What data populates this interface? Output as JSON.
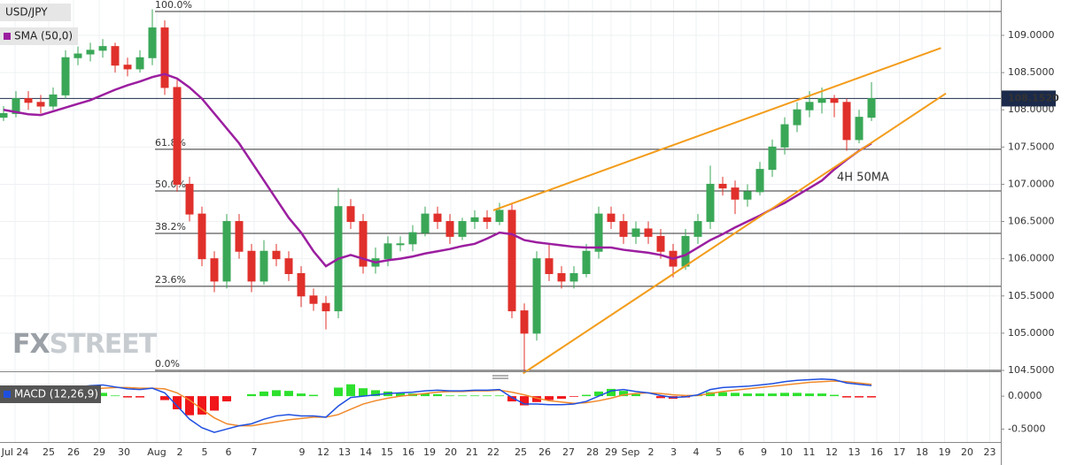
{
  "chart_data": {
    "type": "candlestick",
    "symbol": "USD/JPY",
    "candle_colors": {
      "up": "#3aa757",
      "down": "#e0302b"
    },
    "candles": [
      [
        107.9,
        108.05,
        107.85,
        107.95
      ],
      [
        107.95,
        108.25,
        107.9,
        108.15
      ],
      [
        108.15,
        108.25,
        108.0,
        108.1
      ],
      [
        108.1,
        108.2,
        107.95,
        108.05
      ],
      [
        108.05,
        108.3,
        108.0,
        108.2
      ],
      [
        108.2,
        108.8,
        108.15,
        108.7
      ],
      [
        108.7,
        108.85,
        108.6,
        108.75
      ],
      [
        108.75,
        108.9,
        108.65,
        108.8
      ],
      [
        108.8,
        108.95,
        108.7,
        108.85
      ],
      [
        108.85,
        108.9,
        108.5,
        108.6
      ],
      [
        108.6,
        108.7,
        108.45,
        108.55
      ],
      [
        108.55,
        108.8,
        108.5,
        108.7
      ],
      [
        108.7,
        109.35,
        108.6,
        109.1
      ],
      [
        109.1,
        109.2,
        108.2,
        108.3
      ],
      [
        108.3,
        108.4,
        106.9,
        107.0
      ],
      [
        107.0,
        107.1,
        106.5,
        106.6
      ],
      [
        106.6,
        106.7,
        105.9,
        106.0
      ],
      [
        106.0,
        106.1,
        105.55,
        105.7
      ],
      [
        105.7,
        106.6,
        105.6,
        106.5
      ],
      [
        106.5,
        106.6,
        106.0,
        106.1
      ],
      [
        106.1,
        106.2,
        105.55,
        105.7
      ],
      [
        105.7,
        106.25,
        105.65,
        106.1
      ],
      [
        106.1,
        106.2,
        105.9,
        106.0
      ],
      [
        106.0,
        106.1,
        105.7,
        105.8
      ],
      [
        105.8,
        105.9,
        105.35,
        105.5
      ],
      [
        105.5,
        105.6,
        105.3,
        105.4
      ],
      [
        105.4,
        105.5,
        105.05,
        105.3
      ],
      [
        105.3,
        106.95,
        105.2,
        106.7
      ],
      [
        106.7,
        106.8,
        106.4,
        106.5
      ],
      [
        106.5,
        106.6,
        105.8,
        105.9
      ],
      [
        105.9,
        106.15,
        105.8,
        106.0
      ],
      [
        106.0,
        106.3,
        105.9,
        106.2
      ],
      [
        106.2,
        106.3,
        106.1,
        106.2
      ],
      [
        106.2,
        106.45,
        106.1,
        106.35
      ],
      [
        106.35,
        106.7,
        106.3,
        106.6
      ],
      [
        106.6,
        106.7,
        106.4,
        106.5
      ],
      [
        106.5,
        106.6,
        106.2,
        106.3
      ],
      [
        106.3,
        106.55,
        106.25,
        106.5
      ],
      [
        106.5,
        106.65,
        106.4,
        106.55
      ],
      [
        106.55,
        106.65,
        106.4,
        106.5
      ],
      [
        106.5,
        106.75,
        106.45,
        106.65
      ],
      [
        106.65,
        106.75,
        105.2,
        105.3
      ],
      [
        105.3,
        105.4,
        104.46,
        105.0
      ],
      [
        105.0,
        106.1,
        104.9,
        106.0
      ],
      [
        106.0,
        106.2,
        105.7,
        105.8
      ],
      [
        105.8,
        105.9,
        105.6,
        105.7
      ],
      [
        105.7,
        105.9,
        105.6,
        105.8
      ],
      [
        105.8,
        106.2,
        105.75,
        106.1
      ],
      [
        106.1,
        106.7,
        106.0,
        106.6
      ],
      [
        106.6,
        106.7,
        106.4,
        106.5
      ],
      [
        106.5,
        106.6,
        106.2,
        106.3
      ],
      [
        106.3,
        106.5,
        106.2,
        106.4
      ],
      [
        106.4,
        106.5,
        106.2,
        106.3
      ],
      [
        106.3,
        106.4,
        106.0,
        106.1
      ],
      [
        106.1,
        106.2,
        105.75,
        105.9
      ],
      [
        105.9,
        106.4,
        105.85,
        106.3
      ],
      [
        106.3,
        106.6,
        106.2,
        106.5
      ],
      [
        106.5,
        107.25,
        106.4,
        107.0
      ],
      [
        107.0,
        107.1,
        106.85,
        106.95
      ],
      [
        106.95,
        107.05,
        106.6,
        106.8
      ],
      [
        106.8,
        107.0,
        106.7,
        106.9
      ],
      [
        106.9,
        107.3,
        106.85,
        107.2
      ],
      [
        107.2,
        107.6,
        107.1,
        107.5
      ],
      [
        107.5,
        107.9,
        107.4,
        107.8
      ],
      [
        107.8,
        108.1,
        107.7,
        108.0
      ],
      [
        108.0,
        108.25,
        107.9,
        108.1
      ],
      [
        108.1,
        108.3,
        107.95,
        108.15
      ],
      [
        108.15,
        108.2,
        107.9,
        108.1
      ],
      [
        108.1,
        108.15,
        107.45,
        107.6
      ],
      [
        107.6,
        108.0,
        107.55,
        107.9
      ],
      [
        107.9,
        108.37,
        107.85,
        108.15
      ]
    ],
    "sma": {
      "name": "SMA (50,0)",
      "color": "#9b1ea0",
      "values": [
        108.0,
        107.97,
        107.94,
        107.93,
        107.98,
        108.03,
        108.08,
        108.13,
        108.2,
        108.27,
        108.33,
        108.38,
        108.44,
        108.48,
        108.42,
        108.3,
        108.15,
        107.95,
        107.75,
        107.55,
        107.3,
        107.05,
        106.8,
        106.55,
        106.35,
        106.1,
        105.9,
        106.0,
        106.05,
        106.0,
        105.95,
        105.98,
        106.0,
        106.03,
        106.07,
        106.1,
        106.13,
        106.17,
        106.2,
        106.27,
        106.35,
        106.33,
        106.25,
        106.22,
        106.2,
        106.18,
        106.16,
        106.15,
        106.15,
        106.15,
        106.12,
        106.1,
        106.08,
        106.05,
        106.0,
        106.05,
        106.15,
        106.25,
        106.33,
        106.42,
        106.5,
        106.58,
        106.67,
        106.75,
        106.85,
        106.95,
        107.05,
        107.2,
        107.33,
        107.45,
        107.55
      ]
    },
    "ylim": [
      104.488,
      109.475
    ],
    "yticks": [
      {
        "value": 109,
        "label": "109.0000"
      },
      {
        "value": 108.5,
        "label": "108.5000"
      },
      {
        "value": 108,
        "label": "108.0000"
      },
      {
        "value": 107.5,
        "label": "107.5000"
      },
      {
        "value": 107,
        "label": "107.0000"
      },
      {
        "value": 106.5,
        "label": "106.5000"
      },
      {
        "value": 106,
        "label": "106.0000"
      },
      {
        "value": 105.5,
        "label": "105.5000"
      },
      {
        "value": 105,
        "label": "105.0000"
      },
      {
        "value": 104.5,
        "label": "104.5000"
      }
    ],
    "current_price": {
      "value": 108.152,
      "label": "108.1520",
      "color": "#1b2a4a"
    },
    "fib_levels": [
      {
        "label": "100.0%",
        "value": 109.32
      },
      {
        "label": "61.8%",
        "value": 107.47
      },
      {
        "label": "50.0%",
        "value": 106.91
      },
      {
        "label": "38.2%",
        "value": 106.34
      },
      {
        "label": "23.6%",
        "value": 105.63
      },
      {
        "label": "0.0%",
        "value": 104.5
      }
    ],
    "trendlines": {
      "color": "#f39c1a",
      "lines": [
        {
          "x": [
            39.5,
            75.6
          ],
          "y": [
            106.65,
            108.83
          ]
        },
        {
          "x": [
            41.9,
            76
          ],
          "y": [
            104.46,
            108.22
          ]
        }
      ]
    },
    "annotation": {
      "text": "4H 50MA",
      "color": "#9b1ea0"
    },
    "watermark": [
      "FX",
      "STREET"
    ],
    "categories": [
      "Jul 24",
      "25",
      "26",
      "29",
      "30",
      "Aug",
      "2",
      "5",
      "6",
      "7",
      "9",
      "12",
      "13",
      "14",
      "15",
      "16",
      "19",
      "20",
      "21",
      "22",
      "25",
      "26",
      "27",
      "28",
      "29",
      "Sep",
      "2",
      "3",
      "4",
      "5",
      "6",
      "9",
      "10",
      "11",
      "12",
      "13",
      "16",
      "17",
      "18",
      "19",
      "20",
      "23"
    ],
    "macd": {
      "name": "MACD (12,26,9)",
      "ylim": [
        -0.697,
        0.364
      ],
      "yticks": [
        {
          "value": 0,
          "label": "0.0000"
        },
        {
          "value": -0.5,
          "label": "-0.5000"
        }
      ],
      "macd_line": {
        "color": "#1f4fe0",
        "values": [
          0.05,
          0.06,
          0.05,
          0.04,
          0.05,
          0.1,
          0.14,
          0.16,
          0.17,
          0.14,
          0.11,
          0.1,
          0.12,
          0.05,
          -0.15,
          -0.35,
          -0.48,
          -0.55,
          -0.5,
          -0.45,
          -0.42,
          -0.35,
          -0.3,
          -0.28,
          -0.3,
          -0.3,
          -0.32,
          -0.15,
          -0.02,
          0.0,
          0.02,
          0.04,
          0.05,
          0.06,
          0.08,
          0.09,
          0.08,
          0.08,
          0.09,
          0.09,
          0.1,
          -0.02,
          -0.12,
          -0.12,
          -0.13,
          -0.13,
          -0.12,
          -0.08,
          0.0,
          0.08,
          0.1,
          0.07,
          0.05,
          0.01,
          -0.02,
          -0.01,
          0.02,
          0.1,
          0.13,
          0.14,
          0.15,
          0.17,
          0.19,
          0.22,
          0.24,
          0.25,
          0.26,
          0.25,
          0.2,
          0.18,
          0.16
        ]
      },
      "signal_line": {
        "color": "#f0892a",
        "values": [
          0.05,
          0.05,
          0.05,
          0.05,
          0.05,
          0.06,
          0.08,
          0.1,
          0.12,
          0.13,
          0.13,
          0.12,
          0.12,
          0.11,
          0.05,
          -0.06,
          -0.2,
          -0.33,
          -0.42,
          -0.45,
          -0.45,
          -0.42,
          -0.39,
          -0.36,
          -0.34,
          -0.32,
          -0.32,
          -0.28,
          -0.2,
          -0.12,
          -0.07,
          -0.03,
          0.0,
          0.02,
          0.04,
          0.06,
          0.07,
          0.07,
          0.08,
          0.08,
          0.09,
          0.06,
          0.02,
          -0.03,
          -0.07,
          -0.09,
          -0.11,
          -0.1,
          -0.07,
          -0.03,
          0.02,
          0.04,
          0.05,
          0.04,
          0.02,
          0.01,
          0.01,
          0.04,
          0.07,
          0.09,
          0.11,
          0.13,
          0.15,
          0.17,
          0.19,
          0.21,
          0.22,
          0.23,
          0.22,
          0.2,
          0.18
        ]
      },
      "histogram": {
        "up_color": "#2ee02e",
        "down_color": "#f0161a",
        "values": [
          0,
          0.01,
          0,
          -0.01,
          0,
          0.04,
          0.06,
          0.06,
          0.05,
          0.01,
          -0.02,
          -0.02,
          0,
          -0.06,
          -0.2,
          -0.29,
          -0.28,
          -0.22,
          -0.08,
          0,
          0.03,
          0.07,
          0.09,
          0.08,
          0.04,
          0.02,
          0,
          0.13,
          0.18,
          0.12,
          0.09,
          0.07,
          0.05,
          0.04,
          0.04,
          0.03,
          0.01,
          0.01,
          0.01,
          0.01,
          0.01,
          -0.08,
          -0.14,
          -0.09,
          -0.06,
          -0.04,
          -0.01,
          0.02,
          0.07,
          0.11,
          0.08,
          0.03,
          0,
          -0.03,
          -0.04,
          -0.02,
          0.01,
          0.06,
          0.06,
          0.05,
          0.04,
          0.04,
          0.04,
          0.05,
          0.05,
          0.04,
          0.04,
          0.02,
          -0.02,
          -0.02,
          -0.02
        ]
      }
    }
  }
}
